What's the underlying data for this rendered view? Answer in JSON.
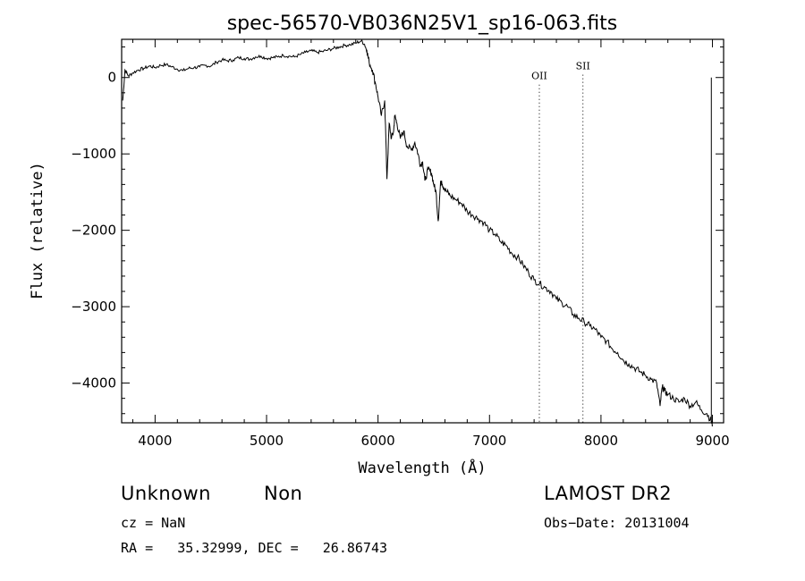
{
  "chart_data": {
    "type": "line",
    "title": "spec-56570-VB036N25V1_sp16-063.fits",
    "xlabel": "Wavelength (Å)",
    "ylabel": "Flux (relative)",
    "xlim": [
      3700,
      9100
    ],
    "ylim": [
      -4520,
      500
    ],
    "x_ticks": [
      4000,
      5000,
      6000,
      7000,
      8000,
      9000
    ],
    "x_tick_labels": [
      "4000",
      "5000",
      "6000",
      "7000",
      "8000",
      "9000"
    ],
    "y_ticks": [
      0,
      -1000,
      -2000,
      -3000,
      -4000
    ],
    "y_tick_labels": [
      "0",
      "−1000",
      "−2000",
      "−3000",
      "−4000"
    ],
    "grid": false,
    "series": [
      {
        "x": [
          3710,
          3730,
          3760,
          3800,
          3850,
          3900,
          3950,
          4000,
          4050,
          4100,
          4150,
          4200,
          4250,
          4300,
          4350,
          4400,
          4450,
          4500,
          4550,
          4600,
          4650,
          4700,
          4750,
          4800,
          4850,
          4900,
          4950,
          5000,
          5050,
          5100,
          5150,
          5200,
          5250,
          5300,
          5350,
          5400,
          5450,
          5500,
          5550,
          5600,
          5650,
          5700,
          5750,
          5800,
          5850,
          5880,
          5900,
          5920,
          5950,
          5980,
          6000,
          6030,
          6060,
          6080,
          6100,
          6120,
          6140,
          6150,
          6170,
          6200,
          6230,
          6260,
          6300,
          6330,
          6360,
          6380,
          6400,
          6420,
          6450,
          6480,
          6500,
          6520,
          6540,
          6560,
          6570,
          6590,
          6620,
          6650,
          6700,
          6750,
          6800,
          6850,
          6900,
          6950,
          7000,
          7050,
          7100,
          7150,
          7200,
          7250,
          7300,
          7350,
          7400,
          7450,
          7500,
          7550,
          7600,
          7650,
          7700,
          7750,
          7800,
          7850,
          7900,
          7950,
          8000,
          8050,
          8100,
          8150,
          8200,
          8250,
          8300,
          8350,
          8400,
          8450,
          8500,
          8530,
          8550,
          8570,
          8600,
          8650,
          8700,
          8750,
          8800,
          8850,
          8900,
          8950,
          8990,
          9000
        ],
        "y": [
          -300,
          100,
          20,
          60,
          100,
          120,
          150,
          130,
          160,
          170,
          140,
          110,
          90,
          120,
          130,
          140,
          160,
          150,
          200,
          230,
          220,
          230,
          260,
          250,
          240,
          270,
          280,
          250,
          260,
          270,
          290,
          280,
          270,
          300,
          330,
          350,
          330,
          340,
          360,
          380,
          400,
          420,
          430,
          450,
          480,
          430,
          350,
          200,
          100,
          -100,
          -250,
          -500,
          -300,
          -1330,
          -600,
          -800,
          -700,
          -500,
          -600,
          -800,
          -700,
          -900,
          -950,
          -850,
          -1000,
          -1150,
          -1100,
          -1350,
          -1200,
          -1250,
          -1400,
          -1500,
          -1880,
          -1400,
          -1350,
          -1450,
          -1500,
          -1550,
          -1600,
          -1650,
          -1750,
          -1800,
          -1850,
          -1900,
          -2000,
          -2050,
          -2150,
          -2200,
          -2300,
          -2350,
          -2450,
          -2550,
          -2650,
          -2700,
          -2750,
          -2800,
          -2900,
          -2950,
          -3000,
          -3100,
          -3150,
          -3200,
          -3250,
          -3300,
          -3400,
          -3450,
          -3550,
          -3600,
          -3700,
          -3750,
          -3800,
          -3850,
          -3900,
          -3950,
          -4000,
          -4300,
          -4050,
          -4100,
          -4150,
          -4200,
          -4250,
          -4200,
          -4300,
          -4250,
          -4350,
          -4400,
          -4500,
          -4550
        ]
      }
    ],
    "annotations": [
      {
        "label": "OII",
        "x": 7447,
        "y": 0
      },
      {
        "label": "SII",
        "x": 7838,
        "y": 130
      }
    ]
  },
  "footer": {
    "class": "Unknown",
    "subclass": "Non",
    "survey": "LAMOST DR2",
    "cz": "cz = NaN",
    "obs_date": "Obs−Date: 20131004",
    "coords": "RA =   35.32999, DEC =   26.86743"
  }
}
